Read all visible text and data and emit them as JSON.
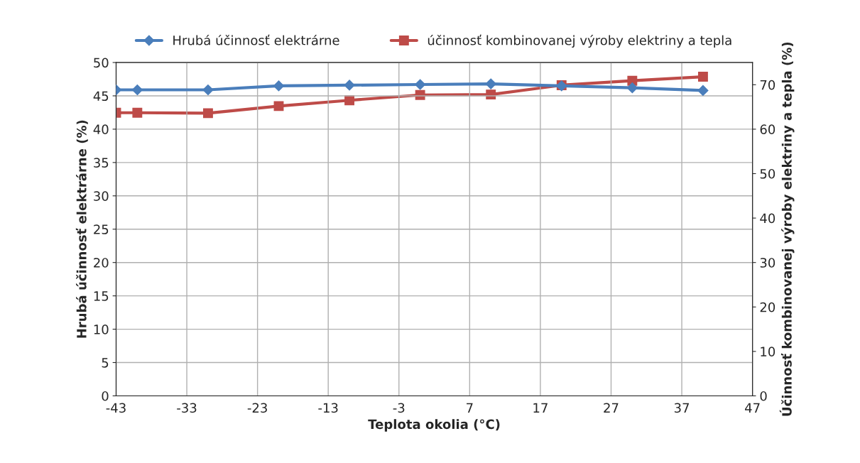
{
  "chart_data": {
    "type": "line",
    "xlabel": "Teplota okolia (°C)",
    "ylabel": "Hrubá účinnosť elektrárne (%)",
    "y2label": "Účinnosť kombinovanej výroby elektriny a tepla (%)",
    "x": [
      -43,
      -40,
      -30,
      -20,
      -10,
      0,
      10,
      20,
      30,
      40
    ],
    "series": [
      {
        "name": "Hrubá účinnosť elektrárne",
        "color": "#4a7ebb",
        "marker": "diamond",
        "values": [
          45.9,
          45.9,
          45.9,
          46.5,
          46.6,
          46.7,
          46.8,
          46.5,
          46.2,
          45.8
        ]
      },
      {
        "name": "účinnosť kombinovanej výroby elektriny a tepla",
        "color": "#be4b48",
        "marker": "square",
        "axis": "y2",
        "values": [
          63.7,
          63.7,
          63.6,
          65.2,
          66.5,
          67.7,
          67.8,
          69.9,
          70.9,
          71.8
        ]
      }
    ],
    "xlim": [
      -43,
      47
    ],
    "xticks": [
      -43,
      -33,
      -23,
      -13,
      -3,
      7,
      17,
      27,
      37,
      47
    ],
    "ylim": [
      0,
      50
    ],
    "yticks": [
      0,
      5,
      10,
      15,
      20,
      25,
      30,
      35,
      40,
      45,
      50
    ],
    "y2lim": [
      0,
      75
    ],
    "y2ticks": [
      0,
      10,
      20,
      30,
      40,
      50,
      60,
      70
    ],
    "grid": true,
    "legend": "top",
    "line_style": "solid"
  }
}
